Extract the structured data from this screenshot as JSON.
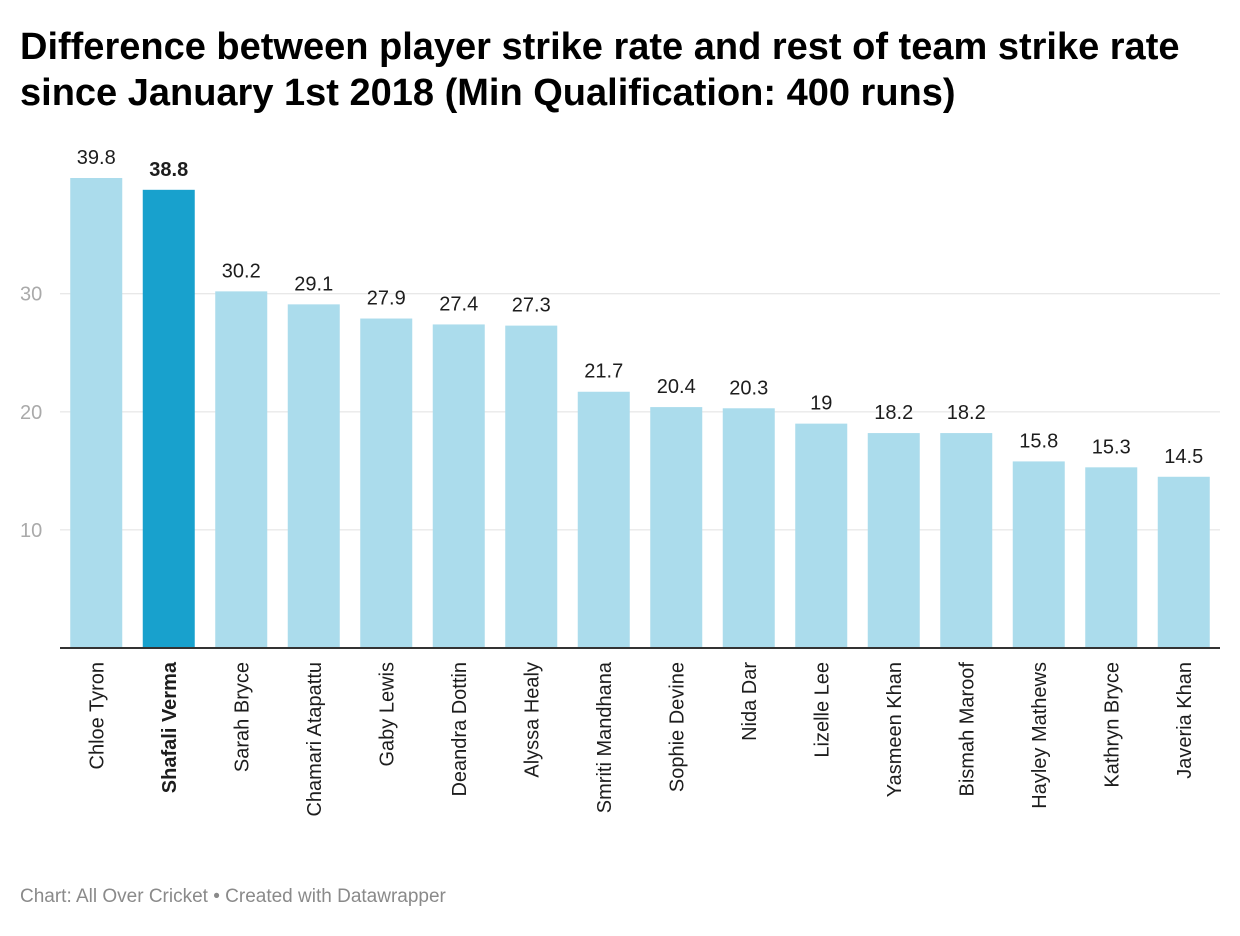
{
  "title": "Difference between player strike rate and rest of team strike rate since January 1st 2018 (Min Qualification: 400 runs)",
  "footer": {
    "source": "Chart: All Over Cricket",
    "separator": " • ",
    "credit": "Created with Datawrapper"
  },
  "colors": {
    "bar": "#abdcec",
    "highlight": "#18a1cd",
    "grid": "#e0e0e0",
    "axis": "#333333",
    "tick_label": "#aaaaaa",
    "text": "#1d1d1d"
  },
  "chart_data": {
    "type": "bar",
    "title": "",
    "xlabel": "",
    "ylabel": "",
    "ylim": [
      0,
      39.8
    ],
    "yticks": [
      10,
      20,
      30
    ],
    "grid": true,
    "legend": "none",
    "highlight": "Shafali Verma",
    "categories": [
      "Chloe Tyron",
      "Shafali Verma",
      "Sarah Bryce",
      "Chamari Atapattu",
      "Gaby Lewis",
      "Deandra Dottin",
      "Alyssa Healy",
      "Smriti Mandhana",
      "Sophie Devine",
      "Nida Dar",
      "Lizelle Lee",
      "Yasmeen Khan",
      "Bismah Maroof",
      "Hayley Mathews",
      "Kathryn Bryce",
      "Javeria Khan"
    ],
    "values": [
      39.8,
      38.8,
      30.2,
      29.1,
      27.9,
      27.4,
      27.3,
      21.7,
      20.4,
      20.3,
      19,
      18.2,
      18.2,
      15.8,
      15.3,
      14.5
    ]
  }
}
